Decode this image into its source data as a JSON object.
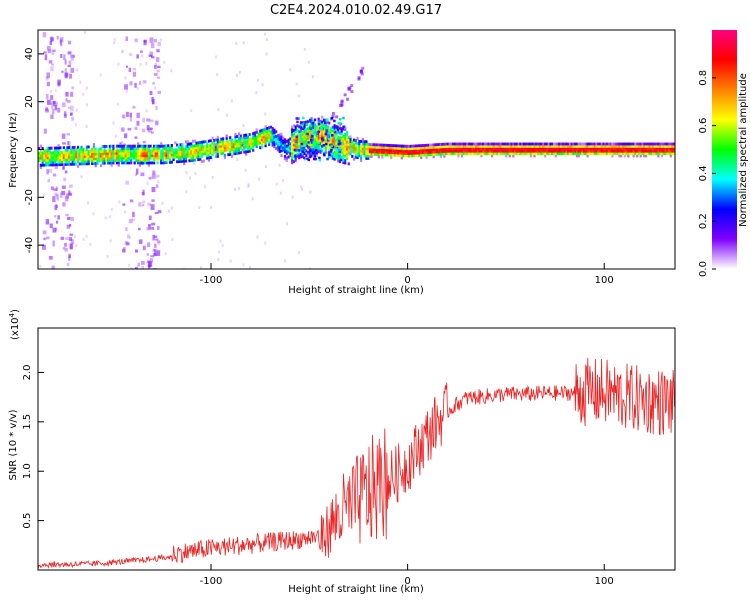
{
  "title": "C2E4.2024.010.02.49.G17",
  "chart_data": [
    {
      "type": "heatmap",
      "xlabel": "Height of straight line (km)",
      "ylabel": "Frequency (Hz)",
      "xlim": [
        -188,
        136
      ],
      "ylim": [
        -50,
        50
      ],
      "xticks": [
        -100,
        0,
        100
      ],
      "yticks": [
        -40,
        -20,
        0,
        20,
        40
      ],
      "colorbar": {
        "label": "Normalized spectral amplitude",
        "range": [
          0,
          1
        ],
        "ticks": [
          0.0,
          0.2,
          0.4,
          0.6,
          0.8
        ],
        "colors": [
          "#ffffff",
          "#8000ff",
          "#0000ff",
          "#00ffff",
          "#00ff00",
          "#ffff00",
          "#ff8000",
          "#ff0000",
          "#ff0080"
        ]
      },
      "ridge": [
        {
          "x": -188,
          "f": -3
        },
        {
          "x": -150,
          "f": -2
        },
        {
          "x": -125,
          "f": -2
        },
        {
          "x": -110,
          "f": -1
        },
        {
          "x": -95,
          "f": 1
        },
        {
          "x": -80,
          "f": 3
        },
        {
          "x": -70,
          "f": 6
        },
        {
          "x": -62,
          "f": 0
        },
        {
          "x": -55,
          "f": 4
        },
        {
          "x": -45,
          "f": 6
        },
        {
          "x": -35,
          "f": 2
        },
        {
          "x": -25,
          "f": 0
        },
        {
          "x": 0,
          "f": -1
        },
        {
          "x": 20,
          "f": 0
        },
        {
          "x": 136,
          "f": 0
        }
      ]
    },
    {
      "type": "line",
      "xlabel": "Height of straight line (km)",
      "ylabel": "SNR (10 * v/v)",
      "yscale_label": "(x10",
      "yscale_exp": "4",
      "yscale_close": ")",
      "xlim": [
        -188,
        136
      ],
      "ylim": [
        0,
        2.45
      ],
      "xticks": [
        -100,
        0,
        100
      ],
      "yticks": [
        0.5,
        1.0,
        1.5,
        2.0
      ],
      "ytick_labels": [
        "0.5",
        "1.0",
        "1.5",
        "2.0"
      ],
      "color": "#ee2222",
      "series": [
        {
          "x": [
            -188,
            -160,
            -140,
            -120,
            -100,
            -80,
            -60,
            -45,
            -40,
            -35,
            -30,
            -25,
            -20,
            -15,
            -10,
            -5,
            0,
            5,
            10,
            15,
            20,
            25,
            30,
            40,
            50,
            60,
            70,
            80,
            90,
            100,
            110,
            120,
            130,
            136
          ],
          "y": [
            0.04,
            0.05,
            0.08,
            0.12,
            0.18,
            0.22,
            0.26,
            0.3,
            0.42,
            0.55,
            0.62,
            0.7,
            0.78,
            0.84,
            0.9,
            0.98,
            1.08,
            1.22,
            1.36,
            1.5,
            1.6,
            1.68,
            1.74,
            1.76,
            1.78,
            1.78,
            1.79,
            1.79,
            1.8,
            1.8,
            1.75,
            1.72,
            1.7,
            1.68
          ]
        }
      ]
    }
  ]
}
